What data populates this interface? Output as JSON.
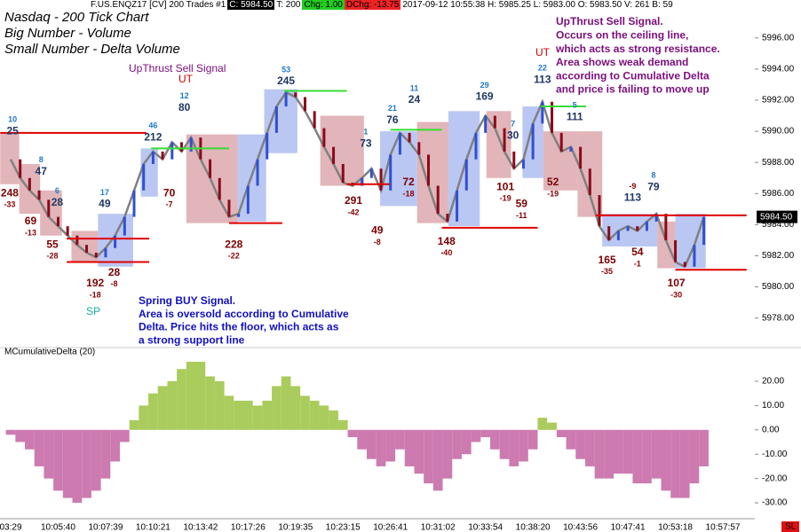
{
  "header": {
    "symbol": "F.US.ENQZ17 [CV]  200 Trades  #1",
    "close": "C: 5984.50",
    "ticks": "T: 200",
    "change": "Chg: 1.00",
    "dchange": "DChg: -13.75",
    "info": "2017-09-12 10:55:38 H: 5985.25  L: 5983.00  O: 5983.50  V: 261  B: 59"
  },
  "corner_label": "SL",
  "annotations": {
    "upthrust_title": "UpThrust Sell Signal",
    "ut1": "UT",
    "ut2": "UT",
    "sp": "SP",
    "upthrust_signal": [
      "UpThrust Sell Signal.",
      "Occurs on the ceiling line,",
      "which acts as strong resistance.",
      "Area shows weak demand",
      "according to Cumulative Delta",
      "and price is failing to move up"
    ],
    "spring_signal": [
      "Spring BUY Signal.",
      "Area is oversold according to Cumulative",
      "Delta. Price hits the floor, which acts as",
      "a strong support line"
    ]
  },
  "chart_data": [
    {
      "type": "line",
      "title": "Nasdaq - 200 Tick Chart",
      "notes": [
        "Big Number - Volume",
        "Small Number - Delta Volume"
      ],
      "color": "#808080",
      "values": [
        5988.2,
        5987.0,
        5986.2,
        5985.6,
        5984.5,
        5983.9,
        5983.3,
        5982.7,
        5982.2,
        5981.9,
        5982.5,
        5983.3,
        5984.5,
        5986.2,
        5987.9,
        5988.7,
        5988.2,
        5989.3,
        5988.7,
        5989.6,
        5988.2,
        5987.0,
        5985.6,
        5984.5,
        5984.7,
        5986.5,
        5988.2,
        5989.9,
        5991.6,
        5992.5,
        5992.2,
        5991.3,
        5990.2,
        5989.0,
        5987.9,
        5986.7,
        5986.5,
        5987.0,
        5987.6,
        5986.2,
        5988.5,
        5989.9,
        5989.3,
        5988.5,
        5986.5,
        5984.7,
        5984.2,
        5986.2,
        5988.2,
        5989.9,
        5991.0,
        5990.2,
        5988.7,
        5987.6,
        5988.2,
        5990.5,
        5991.9,
        5989.9,
        5988.7,
        5989.0,
        5987.6,
        5985.9,
        5983.9,
        5983.0,
        5983.6,
        5983.9,
        5983.6,
        5984.2,
        5984.7,
        5983.0,
        5981.6,
        5981.3,
        5982.7,
        5984.5,
        null,
        null
      ],
      "ylim": [
        5976.5,
        5997.3
      ],
      "yticks": [
        {
          "value": 5978,
          "label": "5978.00"
        },
        {
          "value": 5980,
          "label": "5980.00"
        },
        {
          "value": 5982,
          "label": "5982.00"
        },
        {
          "value": 5984,
          "label": "5984.00"
        },
        {
          "value": 5986,
          "label": "5986.00"
        },
        {
          "value": 5988,
          "label": "5988.00"
        },
        {
          "value": 5990,
          "label": "5990.00"
        },
        {
          "value": 5992,
          "label": "5992.00"
        },
        {
          "value": 5994,
          "label": "5994.00"
        },
        {
          "value": 5996,
          "label": "5996.00"
        }
      ],
      "last": {
        "value": 5984.5,
        "label": "5984.50"
      },
      "zone_colors": {
        "sell": "#d9a3a8",
        "buy": "#a9b9f0"
      },
      "zones": [
        {
          "kind": "sell",
          "x": [
            -1.1,
            0.9
          ],
          "y": [
            5986.6,
            5989.9
          ]
        },
        {
          "kind": "sell",
          "x": [
            0.9,
            3.1
          ],
          "y": [
            5984.7,
            5987.9
          ]
        },
        {
          "kind": "sell",
          "x": [
            3.1,
            5.4
          ],
          "y": [
            5983.3,
            5986.2
          ]
        },
        {
          "kind": "sell",
          "x": [
            6.4,
            9.2
          ],
          "y": [
            5981.6,
            5983.6
          ]
        },
        {
          "kind": "buy",
          "x": [
            9.2,
            12.9
          ],
          "y": [
            5981.3,
            5984.7
          ]
        },
        {
          "kind": "buy",
          "x": [
            13.7,
            15.5
          ],
          "y": [
            5985.8,
            5988.9
          ]
        },
        {
          "kind": "sell",
          "x": [
            18.5,
            23.9
          ],
          "y": [
            5984.1,
            5989.8
          ]
        },
        {
          "kind": "buy",
          "x": [
            23.9,
            26.9
          ],
          "y": [
            5984.2,
            5989.8
          ]
        },
        {
          "kind": "buy",
          "x": [
            26.7,
            30.2
          ],
          "y": [
            5988.6,
            5992.7
          ]
        },
        {
          "kind": "sell",
          "x": [
            32.6,
            37.2
          ],
          "y": [
            5986.5,
            5991.0
          ]
        },
        {
          "kind": "buy",
          "x": [
            38.9,
            42.8
          ],
          "y": [
            5985.2,
            5990.0
          ]
        },
        {
          "kind": "sell",
          "x": [
            42.8,
            46.1
          ],
          "y": [
            5984.1,
            5990.6
          ]
        },
        {
          "kind": "buy",
          "x": [
            46.1,
            49.4
          ],
          "y": [
            5983.9,
            5991.3
          ]
        },
        {
          "kind": "sell",
          "x": [
            50.1,
            52.7
          ],
          "y": [
            5987.0,
            5991.3
          ]
        },
        {
          "kind": "buy",
          "x": [
            53.9,
            56.1
          ],
          "y": [
            5987.0,
            5991.6
          ]
        },
        {
          "kind": "sell",
          "x": [
            56.1,
            59.7
          ],
          "y": [
            5986.2,
            5990.0
          ]
        },
        {
          "kind": "sell",
          "x": [
            59.7,
            62.3
          ],
          "y": [
            5984.5,
            5990.0
          ]
        },
        {
          "kind": "buy",
          "x": [
            62.3,
            68.1
          ],
          "y": [
            5982.6,
            5984.7
          ]
        },
        {
          "kind": "sell",
          "x": [
            68.1,
            70.0
          ],
          "y": [
            5981.2,
            5984.2
          ]
        },
        {
          "kind": "buy",
          "x": [
            70.0,
            73.2
          ],
          "y": [
            5981.2,
            5984.7
          ]
        }
      ],
      "levels": [
        {
          "x": [
            -1.1,
            14.3
          ],
          "y": 5989.9,
          "color": "#e00000"
        },
        {
          "x": [
            5.9,
            14.6
          ],
          "y": 5983.1,
          "color": "#e00000"
        },
        {
          "x": [
            5.9,
            14.6
          ],
          "y": 5981.6,
          "color": "#e00000"
        },
        {
          "x": [
            14.8,
            23.0
          ],
          "y": 5988.9,
          "color": "#33dd33"
        },
        {
          "x": [
            23.0,
            28.6
          ],
          "y": 5984.1,
          "color": "#e00000"
        },
        {
          "x": [
            28.8,
            35.4
          ],
          "y": 5992.6,
          "color": "#33dd33"
        },
        {
          "x": [
            35.4,
            39.9
          ],
          "y": 5986.6,
          "color": "#e00000"
        },
        {
          "x": [
            40.0,
            45.4
          ],
          "y": 5990.1,
          "color": "#33dd33"
        },
        {
          "x": [
            45.4,
            55.5
          ],
          "y": 5983.8,
          "color": "#e00000"
        },
        {
          "x": [
            55.9,
            60.6
          ],
          "y": 5991.6,
          "color": "#33dd33"
        },
        {
          "x": [
            61.6,
            77.5
          ],
          "y": 5984.6,
          "color": "#e00000"
        },
        {
          "x": [
            70.0,
            77.5
          ],
          "y": 5981.1,
          "color": "#e00000"
        }
      ],
      "signals": [
        {
          "position": "above",
          "x": 0.2,
          "y": 5990.0,
          "volume": 25,
          "delta": 10
        },
        {
          "position": "above",
          "x": 3.2,
          "y": 5987.4,
          "volume": 47,
          "delta": 8
        },
        {
          "position": "above",
          "x": 4.9,
          "y": 5985.4,
          "volume": 28,
          "delta": 6
        },
        {
          "position": "above",
          "x": 9.9,
          "y": 5985.3,
          "volume": 49,
          "delta": 17
        },
        {
          "position": "above",
          "x": 15.0,
          "y": 5989.6,
          "volume": 212,
          "delta": 46
        },
        {
          "position": "above",
          "x": 18.3,
          "y": 5991.5,
          "volume": 80,
          "delta": 12
        },
        {
          "position": "above",
          "x": 29.0,
          "y": 5993.2,
          "volume": 245,
          "delta": 53
        },
        {
          "position": "above",
          "x": 37.4,
          "y": 5989.2,
          "volume": 73,
          "delta": 1
        },
        {
          "position": "above",
          "x": 40.2,
          "y": 5990.7,
          "volume": 76,
          "delta": 21
        },
        {
          "position": "above",
          "x": 42.5,
          "y": 5992.0,
          "volume": 24,
          "delta": 11
        },
        {
          "position": "above",
          "x": 49.9,
          "y": 5992.2,
          "volume": 169,
          "delta": 29
        },
        {
          "position": "above",
          "x": 52.9,
          "y": 5989.7,
          "volume": 30,
          "delta": 7
        },
        {
          "position": "above",
          "x": 56.0,
          "y": 5993.3,
          "volume": 113,
          "delta": 22
        },
        {
          "position": "above",
          "x": 59.4,
          "y": 5990.9,
          "volume": 111,
          "delta": 5
        },
        {
          "position": "above",
          "x": 65.5,
          "y": 5985.7,
          "volume": 113,
          "delta": -9
        },
        {
          "position": "above",
          "x": 67.7,
          "y": 5986.4,
          "volume": 79,
          "delta": 8
        },
        {
          "position": "below",
          "x": -0.1,
          "y": 5986.0,
          "volume": 248,
          "delta": -33
        },
        {
          "position": "below",
          "x": 2.1,
          "y": 5984.2,
          "volume": 69,
          "delta": -13
        },
        {
          "position": "below",
          "x": 4.4,
          "y": 5982.7,
          "volume": 55,
          "delta": -28
        },
        {
          "position": "below",
          "x": 8.9,
          "y": 5980.2,
          "volume": 192,
          "delta": -18
        },
        {
          "position": "below",
          "x": 10.9,
          "y": 5980.9,
          "volume": 28,
          "delta": -8
        },
        {
          "position": "below",
          "x": 16.7,
          "y": 5986.0,
          "volume": 70,
          "delta": -7
        },
        {
          "position": "below",
          "x": 23.5,
          "y": 5982.7,
          "volume": 228,
          "delta": -22
        },
        {
          "position": "below",
          "x": 36.1,
          "y": 5985.5,
          "volume": 291,
          "delta": -42
        },
        {
          "position": "below",
          "x": 38.6,
          "y": 5983.6,
          "volume": 49,
          "delta": -8
        },
        {
          "position": "below",
          "x": 41.9,
          "y": 5986.7,
          "volume": 72,
          "delta": -18
        },
        {
          "position": "below",
          "x": 45.9,
          "y": 5982.9,
          "volume": 148,
          "delta": -40
        },
        {
          "position": "below",
          "x": 52.1,
          "y": 5986.4,
          "volume": 101,
          "delta": -19
        },
        {
          "position": "below",
          "x": 53.8,
          "y": 5985.3,
          "volume": 59,
          "delta": -11
        },
        {
          "position": "below",
          "x": 57.1,
          "y": 5986.7,
          "volume": 52,
          "delta": -19
        },
        {
          "position": "below",
          "x": 62.8,
          "y": 5981.7,
          "volume": 165,
          "delta": -35
        },
        {
          "position": "below",
          "x": 66.0,
          "y": 5982.2,
          "volume": 54,
          "delta": -1
        },
        {
          "position": "below",
          "x": 70.1,
          "y": 5980.2,
          "volume": 107,
          "delta": -30
        }
      ]
    },
    {
      "type": "bar",
      "title": "MCumulativeDelta  (20)",
      "colors": {
        "positive": "#a9cc5c",
        "negative": "#cc7ab0"
      },
      "categories": [
        "03:29",
        null,
        null,
        null,
        null,
        "10:05:40",
        null,
        null,
        null,
        null,
        "10:07:39",
        null,
        null,
        null,
        null,
        "10:10:21",
        null,
        null,
        null,
        null,
        "10:13:42",
        null,
        null,
        null,
        null,
        "10:17:26",
        null,
        null,
        null,
        null,
        "10:19:35",
        null,
        null,
        null,
        null,
        "10:23:15",
        null,
        null,
        null,
        null,
        "10:26:41",
        null,
        null,
        null,
        null,
        "10:31:02",
        null,
        null,
        null,
        null,
        "10:33:54",
        null,
        null,
        null,
        null,
        "10:38:20",
        null,
        null,
        null,
        null,
        "10:43:56",
        null,
        null,
        null,
        null,
        "10:47:41",
        null,
        null,
        null,
        null,
        "10:53:18",
        null,
        null,
        null,
        null,
        "10:57:57"
      ],
      "values": [
        -2,
        -5,
        -8,
        -15,
        -20,
        -25,
        -28,
        -30,
        -28,
        -25,
        -20,
        -13,
        -5,
        4,
        10,
        15,
        18,
        20,
        25,
        28,
        28,
        22,
        20,
        14,
        12,
        12,
        10,
        12,
        18,
        22,
        18,
        14,
        12,
        10,
        8,
        4,
        -3,
        -8,
        -12,
        -15,
        -13,
        -8,
        -15,
        -18,
        -22,
        -25,
        -20,
        -12,
        -10,
        -5,
        -3,
        -8,
        -12,
        -15,
        -13,
        -8,
        5,
        3,
        -3,
        -8,
        -12,
        -15,
        -20,
        -20,
        -18,
        -18,
        -22,
        -22,
        -20,
        -25,
        -28,
        -28,
        -22,
        -15,
        null,
        null
      ],
      "ylim": [
        -34.7,
        29.1
      ],
      "yticks": [
        {
          "value": 20,
          "label": "20.00"
        },
        {
          "value": 10,
          "label": "10.00"
        },
        {
          "value": 0,
          "label": "0.00"
        },
        {
          "value": -10,
          "label": "-10.00"
        },
        {
          "value": -20,
          "label": "-20.00"
        },
        {
          "value": -30,
          "label": "-30.00"
        }
      ]
    }
  ]
}
